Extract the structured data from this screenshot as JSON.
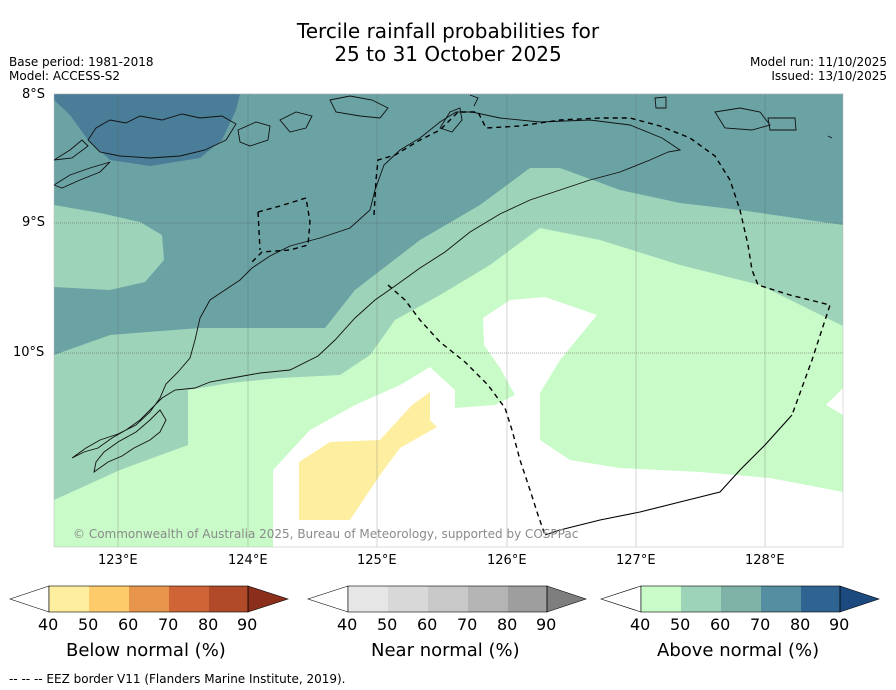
{
  "title": {
    "line1": "Tercile rainfall probabilities for",
    "line2": "25 to 31 October 2025"
  },
  "meta": {
    "base_period": "Base period: 1981-2018",
    "model": "Model: ACCESS-S2",
    "model_run": "Model run: 11/10/2025",
    "issued": "Issued: 13/10/2025"
  },
  "map": {
    "lat_labels": [
      "8°S",
      "9°S",
      "10°S"
    ],
    "lon_labels": [
      "123°E",
      "124°E",
      "125°E",
      "126°E",
      "127°E",
      "128°E"
    ],
    "copyright": "© Commonwealth of Australia 2025, Bureau of Meteorology, supported by COSPPac",
    "colors": {
      "above_40_50": "#c8fbc8",
      "above_50_60": "#9dd3b9",
      "above_60_70": "#6ba3a5",
      "above_70_80": "#4a7d98",
      "below_40_50": "#fdeea0",
      "neutral": "#ffffff"
    }
  },
  "colorbars": {
    "below": {
      "title": "Below normal (%)",
      "ticks": [
        "40",
        "50",
        "60",
        "70",
        "80",
        "90"
      ],
      "colors": [
        "#ffffff",
        "#fdeea0",
        "#fdcb6a",
        "#e6954b",
        "#cf6536",
        "#b04a29",
        "#8b2e1c"
      ]
    },
    "near": {
      "title": "Near normal (%)",
      "ticks": [
        "40",
        "50",
        "60",
        "70",
        "80",
        "90"
      ],
      "colors": [
        "#ffffff",
        "#e6e6e6",
        "#d8d8d8",
        "#c8c8c8",
        "#b4b4b4",
        "#9e9e9e",
        "#7e7e7e"
      ]
    },
    "above": {
      "title": "Above normal (%)",
      "ticks": [
        "40",
        "50",
        "60",
        "70",
        "80",
        "90"
      ],
      "colors": [
        "#ffffff",
        "#c8fbc8",
        "#9dd3b9",
        "#7fb3a8",
        "#558ea0",
        "#2f6391",
        "#1c4a7e"
      ]
    }
  },
  "footnote": "--  --  -- EEZ border V11 (Flanders Marine Institute, 2019)."
}
